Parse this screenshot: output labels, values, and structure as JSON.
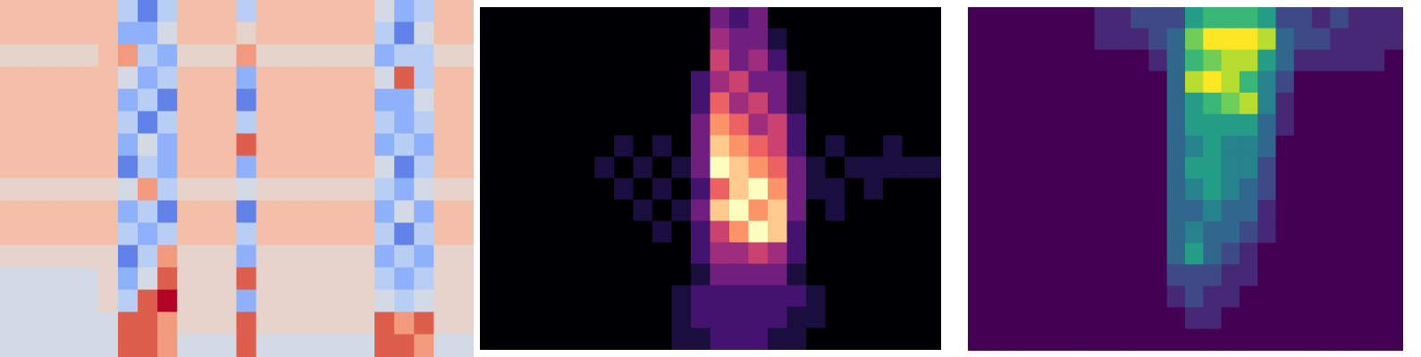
{
  "chart_data": [
    {
      "type": "heatmap",
      "tick_labels": false,
      "zlim": [
        0,
        9
      ],
      "cells": [
        [
          6,
          6,
          6,
          6,
          6,
          6,
          3,
          1,
          3,
          6,
          6,
          6,
          3,
          6,
          6,
          6,
          6,
          6,
          6,
          4,
          2,
          3,
          6,
          6
        ],
        [
          6,
          6,
          6,
          6,
          6,
          6,
          2,
          2,
          4,
          6,
          6,
          6,
          5,
          6,
          6,
          6,
          6,
          6,
          6,
          3,
          1,
          4,
          6,
          6
        ],
        [
          5,
          5,
          5,
          5,
          5,
          6,
          7,
          3,
          2,
          5,
          5,
          5,
          7,
          5,
          5,
          5,
          5,
          5,
          5,
          2,
          3,
          3,
          5,
          5
        ],
        [
          6,
          6,
          6,
          6,
          6,
          6,
          4,
          2,
          3,
          6,
          6,
          6,
          2,
          6,
          6,
          6,
          6,
          6,
          6,
          4,
          8,
          3,
          6,
          6
        ],
        [
          6,
          6,
          6,
          6,
          6,
          6,
          2,
          3,
          1,
          6,
          6,
          6,
          1,
          6,
          6,
          6,
          6,
          6,
          6,
          2,
          2,
          4,
          6,
          6
        ],
        [
          6,
          6,
          6,
          6,
          6,
          6,
          3,
          1,
          3,
          6,
          6,
          6,
          3,
          6,
          6,
          6,
          6,
          6,
          6,
          3,
          2,
          3,
          6,
          6
        ],
        [
          6,
          6,
          6,
          6,
          6,
          6,
          2,
          4,
          2,
          6,
          6,
          6,
          8,
          6,
          6,
          6,
          6,
          6,
          6,
          2,
          3,
          2,
          6,
          6
        ],
        [
          6,
          6,
          6,
          6,
          6,
          6,
          1,
          3,
          2,
          6,
          6,
          6,
          2,
          6,
          6,
          6,
          6,
          6,
          6,
          4,
          1,
          3,
          6,
          6
        ],
        [
          5,
          5,
          5,
          5,
          5,
          5,
          4,
          7,
          3,
          5,
          5,
          5,
          4,
          5,
          5,
          5,
          5,
          5,
          5,
          3,
          2,
          4,
          5,
          5
        ],
        [
          6,
          6,
          6,
          6,
          6,
          6,
          2,
          3,
          1,
          6,
          6,
          6,
          1,
          6,
          6,
          6,
          6,
          6,
          6,
          2,
          4,
          2,
          6,
          6
        ],
        [
          6,
          6,
          6,
          6,
          6,
          6,
          3,
          2,
          3,
          6,
          6,
          6,
          3,
          6,
          6,
          6,
          6,
          6,
          6,
          3,
          1,
          3,
          6,
          6
        ],
        [
          5,
          5,
          5,
          5,
          5,
          5,
          1,
          3,
          7,
          5,
          5,
          5,
          2,
          5,
          5,
          5,
          5,
          5,
          5,
          2,
          3,
          2,
          5,
          5
        ],
        [
          4,
          4,
          4,
          4,
          4,
          5,
          2,
          4,
          8,
          5,
          5,
          5,
          8,
          5,
          5,
          5,
          5,
          5,
          5,
          3,
          2,
          3,
          5,
          5
        ],
        [
          4,
          4,
          4,
          4,
          4,
          5,
          3,
          8,
          9,
          5,
          5,
          5,
          2,
          5,
          5,
          5,
          5,
          5,
          5,
          4,
          3,
          4,
          5,
          5
        ],
        [
          4,
          4,
          4,
          4,
          4,
          4,
          8,
          8,
          7,
          5,
          5,
          5,
          8,
          5,
          5,
          5,
          5,
          5,
          5,
          8,
          7,
          8,
          5,
          5
        ],
        [
          4,
          4,
          4,
          4,
          4,
          4,
          8,
          8,
          7,
          4,
          4,
          4,
          8,
          4,
          4,
          4,
          4,
          4,
          4,
          8,
          8,
          7,
          4,
          4
        ]
      ]
    },
    {
      "type": "heatmap",
      "tick_labels": false,
      "zlim": [
        0,
        9
      ],
      "cells": [
        [
          0,
          0,
          0,
          0,
          0,
          0,
          0,
          0,
          0,
          0,
          0,
          0,
          3,
          2,
          3,
          0,
          0,
          0,
          0,
          0,
          0,
          0,
          0,
          0
        ],
        [
          0,
          0,
          0,
          0,
          0,
          0,
          0,
          0,
          0,
          0,
          0,
          0,
          4,
          3,
          3,
          1,
          0,
          0,
          0,
          0,
          0,
          0,
          0,
          0
        ],
        [
          0,
          0,
          0,
          0,
          0,
          0,
          0,
          0,
          0,
          0,
          0,
          0,
          5,
          3,
          4,
          2,
          0,
          0,
          0,
          0,
          0,
          0,
          0,
          0
        ],
        [
          0,
          0,
          0,
          0,
          0,
          0,
          0,
          0,
          0,
          0,
          0,
          2,
          4,
          5,
          3,
          3,
          1,
          0,
          0,
          0,
          0,
          0,
          0,
          0
        ],
        [
          0,
          0,
          0,
          0,
          0,
          0,
          0,
          0,
          0,
          0,
          0,
          2,
          6,
          4,
          5,
          3,
          1,
          0,
          0,
          0,
          0,
          0,
          0,
          0
        ],
        [
          0,
          0,
          0,
          0,
          0,
          0,
          0,
          0,
          0,
          0,
          0,
          3,
          7,
          6,
          4,
          5,
          2,
          0,
          0,
          0,
          0,
          0,
          0,
          0
        ],
        [
          0,
          0,
          0,
          0,
          0,
          0,
          0,
          1,
          0,
          1,
          0,
          3,
          8,
          7,
          6,
          5,
          2,
          0,
          1,
          0,
          0,
          1,
          0,
          0
        ],
        [
          0,
          0,
          0,
          0,
          0,
          0,
          1,
          0,
          1,
          0,
          1,
          3,
          9,
          8,
          7,
          6,
          3,
          1,
          0,
          1,
          1,
          1,
          1,
          1
        ],
        [
          0,
          0,
          0,
          0,
          0,
          0,
          0,
          1,
          0,
          1,
          0,
          2,
          6,
          8,
          9,
          7,
          3,
          1,
          1,
          0,
          1,
          0,
          0,
          0
        ],
        [
          0,
          0,
          0,
          0,
          0,
          0,
          0,
          0,
          1,
          0,
          1,
          3,
          8,
          9,
          7,
          8,
          3,
          0,
          1,
          0,
          0,
          0,
          0,
          0
        ],
        [
          0,
          0,
          0,
          0,
          0,
          0,
          0,
          0,
          0,
          1,
          0,
          2,
          5,
          7,
          9,
          8,
          2,
          0,
          0,
          0,
          0,
          0,
          0,
          0
        ],
        [
          0,
          0,
          0,
          0,
          0,
          0,
          0,
          0,
          0,
          0,
          0,
          2,
          4,
          4,
          5,
          4,
          2,
          0,
          0,
          0,
          0,
          0,
          0,
          0
        ],
        [
          0,
          0,
          0,
          0,
          0,
          0,
          0,
          0,
          0,
          0,
          0,
          1,
          3,
          3,
          3,
          3,
          1,
          0,
          0,
          0,
          0,
          0,
          0,
          0
        ],
        [
          0,
          0,
          0,
          0,
          0,
          0,
          0,
          0,
          0,
          0,
          1,
          2,
          2,
          2,
          2,
          2,
          2,
          1,
          0,
          0,
          0,
          0,
          0,
          0
        ],
        [
          0,
          0,
          0,
          0,
          0,
          0,
          0,
          0,
          0,
          0,
          1,
          2,
          2,
          2,
          2,
          2,
          1,
          1,
          0,
          0,
          0,
          0,
          0,
          0
        ],
        [
          0,
          0,
          0,
          0,
          0,
          0,
          0,
          0,
          0,
          0,
          1,
          1,
          2,
          2,
          2,
          1,
          1,
          0,
          0,
          0,
          0,
          0,
          0,
          0
        ]
      ]
    },
    {
      "type": "heatmap",
      "tick_labels": false,
      "zlim": [
        0,
        9
      ],
      "cells": [
        [
          0,
          0,
          0,
          0,
          0,
          0,
          0,
          1,
          1,
          2,
          2,
          2,
          5,
          6,
          6,
          6,
          5,
          2,
          2,
          1,
          2,
          1,
          1,
          1
        ],
        [
          0,
          0,
          0,
          0,
          0,
          0,
          0,
          1,
          1,
          1,
          2,
          3,
          7,
          9,
          9,
          9,
          8,
          3,
          2,
          2,
          1,
          1,
          1,
          1
        ],
        [
          0,
          0,
          0,
          0,
          0,
          0,
          0,
          0,
          0,
          0,
          1,
          3,
          6,
          7,
          8,
          8,
          5,
          3,
          1,
          1,
          1,
          1,
          1,
          0
        ],
        [
          0,
          0,
          0,
          0,
          0,
          0,
          0,
          0,
          0,
          0,
          0,
          3,
          8,
          9,
          8,
          6,
          4,
          2,
          0,
          0,
          0,
          0,
          0,
          0
        ],
        [
          0,
          0,
          0,
          0,
          0,
          0,
          0,
          0,
          0,
          0,
          0,
          3,
          5,
          6,
          7,
          8,
          4,
          1,
          0,
          0,
          0,
          0,
          0,
          0
        ],
        [
          0,
          0,
          0,
          0,
          0,
          0,
          0,
          0,
          0,
          0,
          0,
          3,
          5,
          5,
          5,
          5,
          3,
          1,
          0,
          0,
          0,
          0,
          0,
          0
        ],
        [
          0,
          0,
          0,
          0,
          0,
          0,
          0,
          0,
          0,
          0,
          0,
          3,
          4,
          5,
          4,
          4,
          3,
          0,
          0,
          0,
          0,
          0,
          0,
          0
        ],
        [
          0,
          0,
          0,
          0,
          0,
          0,
          0,
          0,
          0,
          0,
          0,
          3,
          5,
          5,
          4,
          4,
          2,
          0,
          0,
          0,
          0,
          0,
          0,
          0
        ],
        [
          0,
          0,
          0,
          0,
          0,
          0,
          0,
          0,
          0,
          0,
          0,
          3,
          4,
          5,
          4,
          3,
          2,
          0,
          0,
          0,
          0,
          0,
          0,
          0
        ],
        [
          0,
          0,
          0,
          0,
          0,
          0,
          0,
          0,
          0,
          0,
          0,
          3,
          3,
          4,
          3,
          3,
          1,
          0,
          0,
          0,
          0,
          0,
          0,
          0
        ],
        [
          0,
          0,
          0,
          0,
          0,
          0,
          0,
          0,
          0,
          0,
          0,
          3,
          4,
          3,
          3,
          2,
          1,
          0,
          0,
          0,
          0,
          0,
          0,
          0
        ],
        [
          0,
          0,
          0,
          0,
          0,
          0,
          0,
          0,
          0,
          0,
          0,
          3,
          5,
          3,
          2,
          1,
          0,
          0,
          0,
          0,
          0,
          0,
          0,
          0
        ],
        [
          0,
          0,
          0,
          0,
          0,
          0,
          0,
          0,
          0,
          0,
          0,
          2,
          2,
          2,
          1,
          1,
          0,
          0,
          0,
          0,
          0,
          0,
          0,
          0
        ],
        [
          0,
          0,
          0,
          0,
          0,
          0,
          0,
          0,
          0,
          0,
          0,
          1,
          2,
          1,
          1,
          0,
          0,
          0,
          0,
          0,
          0,
          0,
          0,
          0
        ],
        [
          0,
          0,
          0,
          0,
          0,
          0,
          0,
          0,
          0,
          0,
          0,
          0,
          1,
          1,
          0,
          0,
          0,
          0,
          0,
          0,
          0,
          0,
          0,
          0
        ],
        [
          0,
          0,
          0,
          0,
          0,
          0,
          0,
          0,
          0,
          0,
          0,
          0,
          0,
          0,
          0,
          0,
          0,
          0,
          0,
          0,
          0,
          0,
          0,
          0
        ]
      ]
    }
  ]
}
